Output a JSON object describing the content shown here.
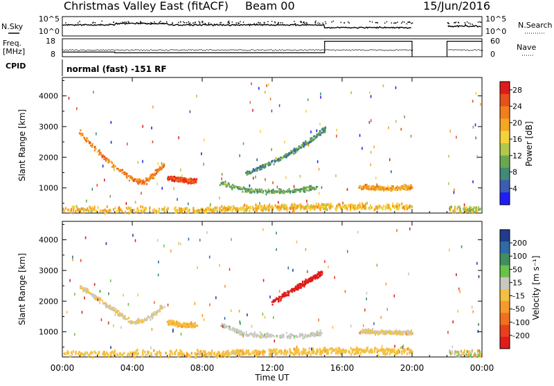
{
  "header": {
    "station": "Christmas Valley East (fitACF)",
    "beam": "Beam 00",
    "date": "15/Jun/2016"
  },
  "strip_labels": {
    "nsky": "N.Sky",
    "nsearch": "N.Search",
    "freq_line1": "Freq.",
    "freq_line2": "[MHz]",
    "nave": "Nave",
    "cpid": "CPID",
    "cpid_text": "normal (fast) -151 RF",
    "noise_ticks": [
      "10^5",
      "10^0"
    ],
    "freq_ticks": [
      "18",
      "8"
    ],
    "nave_ticks": [
      "60",
      "0"
    ]
  },
  "chart_data": [
    {
      "type": "scatter",
      "name": "power",
      "xlabel": "Time UT",
      "ylabel": "Slant Range [km]",
      "xlim": [
        0,
        24
      ],
      "ylim": [
        180,
        4600
      ],
      "x_ticks": [
        "00:00",
        "04:00",
        "08:00",
        "12:00",
        "16:00",
        "20:00",
        "00:00"
      ],
      "y_ticks": [
        1000,
        2000,
        3000,
        4000
      ],
      "colorbar": {
        "label": "Power [dB]",
        "ticks": [
          "4",
          "8",
          "12",
          "16",
          "20",
          "24",
          "28"
        ],
        "range": [
          0,
          30
        ],
        "colors": [
          "#1f1ff5",
          "#3d5cb3",
          "#3f8a78",
          "#6aa84f",
          "#b0c94a",
          "#f5d23a",
          "#f5a623",
          "#f07f1c",
          "#e8501b",
          "#e01b1b"
        ]
      },
      "data_gap_hours": [
        20.0,
        22.0
      ],
      "features": [
        {
          "desc": "arc",
          "points": [
            [
              1.0,
              2850
            ],
            [
              2.0,
              2200
            ],
            [
              3.0,
              1700
            ],
            [
              4.0,
              1300
            ],
            [
              4.6,
              1200
            ],
            [
              5.2,
              1450
            ],
            [
              5.8,
              1800
            ]
          ],
          "value": 22
        },
        {
          "desc": "patch",
          "points": [
            [
              6.0,
              1350
            ],
            [
              6.8,
              1280
            ],
            [
              7.6,
              1250
            ]
          ],
          "value": 26
        },
        {
          "desc": "arc",
          "points": [
            [
              9.0,
              1200
            ],
            [
              10.5,
              950
            ],
            [
              12.0,
              900
            ],
            [
              13.5,
              950
            ],
            [
              14.5,
              1050
            ]
          ],
          "value": 10
        },
        {
          "desc": "arc",
          "points": [
            [
              10.5,
              1500
            ],
            [
              12.5,
              2000
            ],
            [
              14.0,
              2500
            ],
            [
              15.0,
              2950
            ]
          ],
          "value": 8
        },
        {
          "desc": "patch",
          "points": [
            [
              17.0,
              1050
            ],
            [
              18.5,
              1000
            ],
            [
              20.0,
              1050
            ]
          ],
          "value": 20
        },
        {
          "desc": "ground_band",
          "points": [
            [
              0.0,
              320
            ],
            [
              8.0,
              300
            ],
            [
              12.0,
              380
            ],
            [
              16.0,
              420
            ],
            [
              20.0,
              400
            ]
          ],
          "value": 18
        }
      ]
    },
    {
      "type": "scatter",
      "name": "velocity",
      "xlabel": "Time UT",
      "ylabel": "Slant Range [km]",
      "xlim": [
        0,
        24
      ],
      "ylim": [
        180,
        4600
      ],
      "x_ticks": [
        "00:00",
        "04:00",
        "08:00",
        "12:00",
        "16:00",
        "20:00",
        "00:00"
      ],
      "y_ticks": [
        1000,
        2000,
        3000,
        4000
      ],
      "colorbar": {
        "label": "Velocity [m s⁻¹]",
        "ticks": [
          "200",
          "100",
          "50",
          "15",
          "-15",
          "-50",
          "-100",
          "-200"
        ],
        "range": [
          -250,
          250
        ],
        "colors": [
          "#1f3d8a",
          "#2f6ba8",
          "#3f8f5f",
          "#6ac24a",
          "#c8c8c0",
          "#f5c040",
          "#f59a2a",
          "#f07020",
          "#e8401c",
          "#e01b1b"
        ]
      },
      "data_gap_hours": [
        20.0,
        22.0
      ],
      "features": [
        {
          "desc": "arc",
          "points": [
            [
              1.0,
              2500
            ],
            [
              2.0,
              2100
            ],
            [
              3.0,
              1700
            ],
            [
              4.0,
              1300
            ],
            [
              5.0,
              1500
            ],
            [
              5.8,
              1900
            ]
          ],
          "value": 0
        },
        {
          "desc": "patch",
          "points": [
            [
              6.0,
              1350
            ],
            [
              6.8,
              1250
            ],
            [
              7.6,
              1250
            ]
          ],
          "value": -40
        },
        {
          "desc": "arc",
          "points": [
            [
              9.0,
              1250
            ],
            [
              10.5,
              950
            ],
            [
              12.0,
              880
            ],
            [
              14.0,
              900
            ],
            [
              14.8,
              1000
            ]
          ],
          "value": 30
        },
        {
          "desc": "arc",
          "points": [
            [
              12.0,
              2000
            ],
            [
              13.5,
              2500
            ],
            [
              14.8,
              2950
            ]
          ],
          "value": -220
        },
        {
          "desc": "patch",
          "points": [
            [
              17.0,
              1050
            ],
            [
              18.5,
              1000
            ],
            [
              20.0,
              1000
            ]
          ],
          "value": 0
        },
        {
          "desc": "ground_band",
          "points": [
            [
              0.0,
              320
            ],
            [
              8.0,
              300
            ],
            [
              12.0,
              360
            ],
            [
              16.0,
              400
            ],
            [
              20.0,
              400
            ]
          ],
          "value": -30
        }
      ]
    }
  ]
}
